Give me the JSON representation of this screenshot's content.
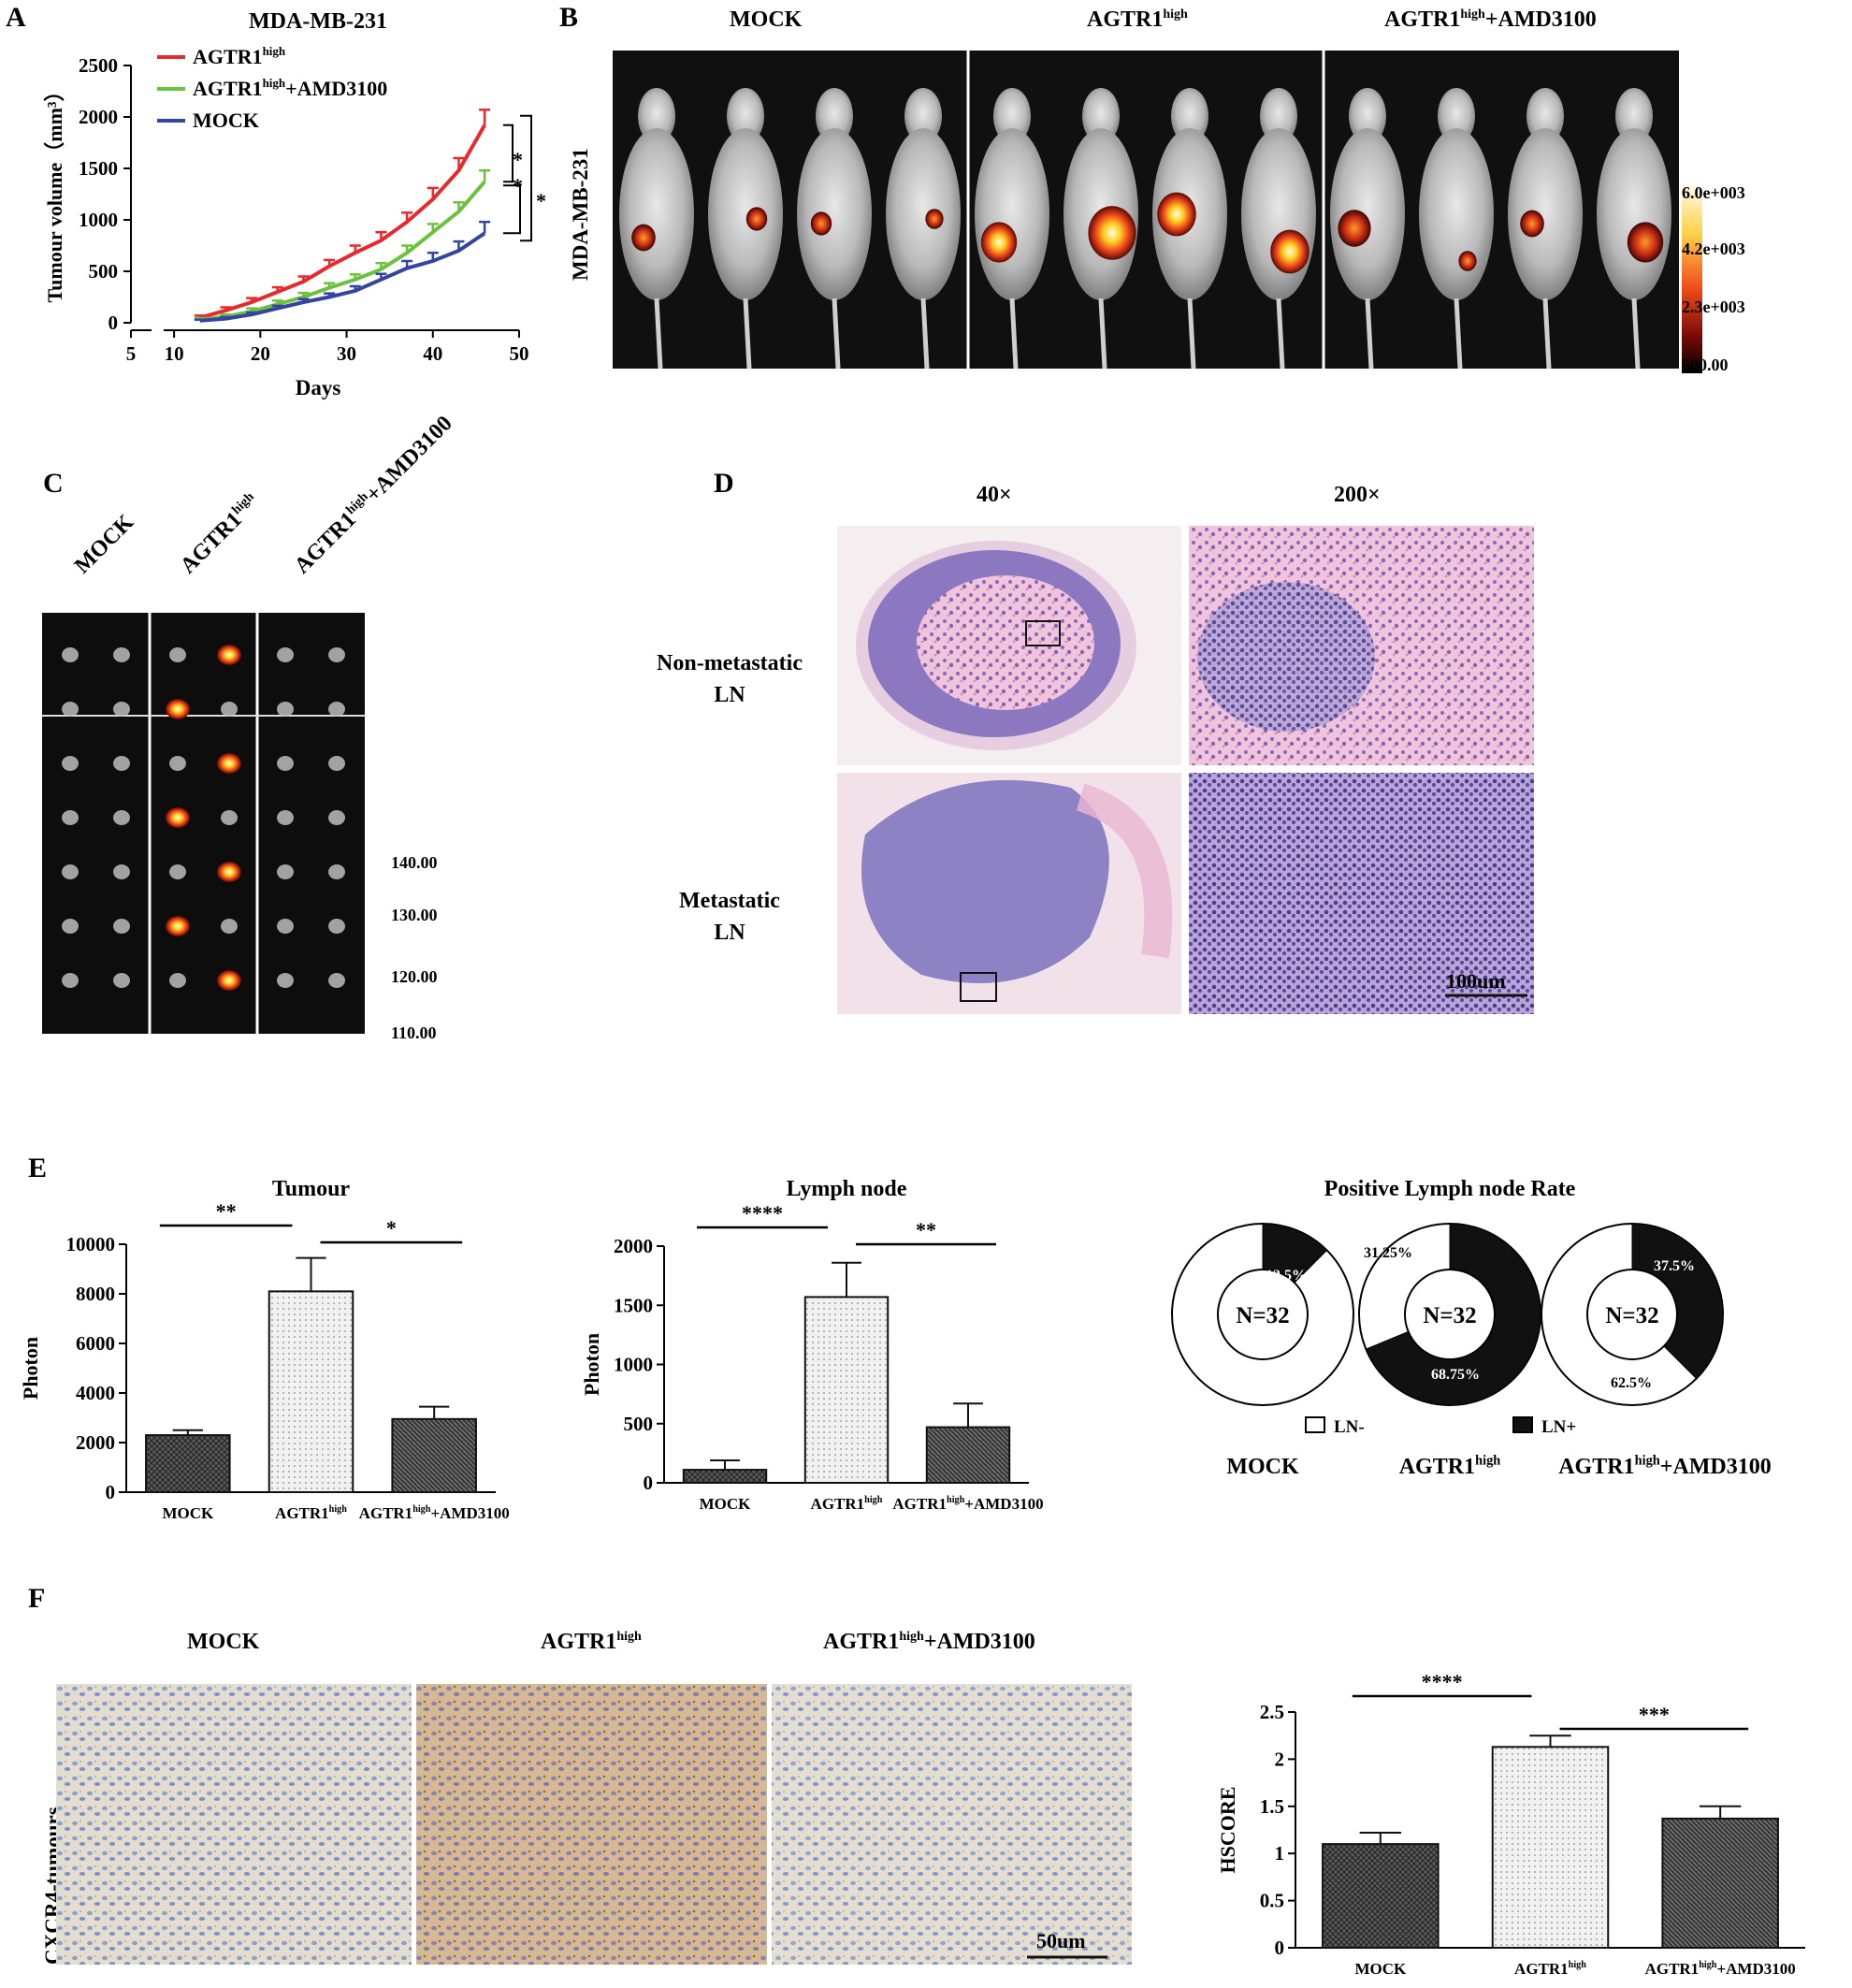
{
  "panels": {
    "A": "A",
    "B": "B",
    "C": "C",
    "D": "D",
    "E": "E",
    "F": "F"
  },
  "groups": {
    "mock": "MOCK",
    "agtr1_base": "AGTR1",
    "high_sup": "high",
    "amd_suffix": "+AMD3100"
  },
  "panelB": {
    "side_label": "MDA-MB-231",
    "scale_ticks": [
      "6.0e+003",
      "4.2e+003",
      "2.3e+003",
      "500.00"
    ]
  },
  "panelC": {
    "scale_ticks": [
      "140.00",
      "130.00",
      "120.00",
      "110.00"
    ]
  },
  "panelD": {
    "col1": "40×",
    "col2": "200×",
    "row1_line1": "Non-metastatic",
    "row1_line2": "LN",
    "row2_line1": "Metastatic",
    "row2_line2": "LN",
    "scale_bar": "100um"
  },
  "panelF": {
    "side_label": "CXCR4-tumours",
    "scale_bar": "50um"
  },
  "colors": {
    "agtr1": "#e8282b",
    "agtr1_amd": "#6ac23c",
    "mock": "#3543a3"
  },
  "chart_data": [
    {
      "id": "A",
      "type": "line",
      "title": "MDA-MB-231",
      "xlabel": "Days",
      "ylabel": "Tumour volume（mm³）",
      "xlim": [
        5,
        50
      ],
      "ylim": [
        0,
        2500
      ],
      "xticks": [
        5,
        10,
        20,
        30,
        40,
        50
      ],
      "yticks": [
        0,
        500,
        1000,
        1500,
        2000,
        2500
      ],
      "x": [
        13,
        16,
        19,
        22,
        25,
        28,
        31,
        34,
        37,
        40,
        43,
        46
      ],
      "series": [
        {
          "name": "AGTR1high",
          "legend_base": "AGTR1",
          "legend_sup": "high",
          "legend_suffix": "",
          "color": "#e8282b",
          "values": [
            50,
            120,
            200,
            300,
            400,
            550,
            680,
            800,
            980,
            1200,
            1480,
            1920
          ],
          "errors": [
            20,
            30,
            40,
            45,
            50,
            60,
            70,
            80,
            90,
            110,
            120,
            150
          ]
        },
        {
          "name": "AGTR1high+AMD3100",
          "legend_base": "AGTR1",
          "legend_sup": "high",
          "legend_suffix": "+AMD3100",
          "color": "#6ac23c",
          "values": [
            30,
            60,
            110,
            180,
            250,
            340,
            420,
            520,
            680,
            880,
            1080,
            1370
          ],
          "errors": [
            15,
            20,
            30,
            35,
            40,
            45,
            50,
            60,
            70,
            80,
            90,
            110
          ]
        },
        {
          "name": "MOCK",
          "legend_base": "MOCK",
          "legend_sup": "",
          "legend_suffix": "",
          "color": "#3543a3",
          "values": [
            20,
            40,
            80,
            140,
            200,
            250,
            310,
            420,
            530,
            600,
            700,
            870
          ],
          "errors": [
            10,
            15,
            20,
            25,
            30,
            35,
            45,
            55,
            70,
            80,
            90,
            110
          ]
        }
      ],
      "significance": [
        "*",
        "*",
        "*"
      ]
    },
    {
      "id": "E-tumour",
      "type": "bar",
      "title": "Tumour",
      "ylabel": "Photon",
      "ylim": [
        0,
        10000
      ],
      "yticks": [
        0,
        2000,
        4000,
        6000,
        8000,
        10000
      ],
      "categories": [
        "MOCK",
        "AGTR1high",
        "AGTR1high+AMD3100"
      ],
      "values": [
        2300,
        8100,
        2950
      ],
      "errors": [
        200,
        1350,
        500
      ],
      "significance": [
        {
          "from": 0,
          "to": 1,
          "label": "**"
        },
        {
          "from": 1,
          "to": 2,
          "label": "*"
        }
      ]
    },
    {
      "id": "E-lymph",
      "type": "bar",
      "title": "Lymph node",
      "ylabel": "Photon",
      "ylim": [
        0,
        2000
      ],
      "yticks": [
        0,
        500,
        1000,
        1500,
        2000
      ],
      "categories": [
        "MOCK",
        "AGTR1high",
        "AGTR1high+AMD3100"
      ],
      "values": [
        110,
        1570,
        470
      ],
      "errors": [
        80,
        290,
        200
      ],
      "significance": [
        {
          "from": 0,
          "to": 1,
          "label": "****"
        },
        {
          "from": 1,
          "to": 2,
          "label": "**"
        }
      ]
    },
    {
      "id": "E-pie",
      "type": "pie",
      "title": "Positive Lymph node Rate",
      "center_label": "N=32",
      "legend": [
        "LN-",
        "LN+"
      ],
      "pies": [
        {
          "group": "MOCK",
          "positive": 12.5,
          "negative": 87.5,
          "labels": [
            "12.5%"
          ]
        },
        {
          "group": "AGTR1high",
          "positive": 68.75,
          "negative": 31.25,
          "labels": [
            "31.25%",
            "68.75%"
          ]
        },
        {
          "group": "AGTR1high+AMD3100",
          "positive": 37.5,
          "negative": 62.5,
          "labels": [
            "37.5%",
            "62.5%"
          ]
        }
      ]
    },
    {
      "id": "F-hscore",
      "type": "bar",
      "ylabel": "HSCORE",
      "ylim": [
        0,
        2.5
      ],
      "yticks": [
        "0",
        "0.5",
        "1",
        "1.5",
        "2",
        "2.5"
      ],
      "categories": [
        "MOCK",
        "AGTR1high",
        "AGTR1high+AMD3100"
      ],
      "values": [
        1.1,
        2.13,
        1.37
      ],
      "errors": [
        0.12,
        0.12,
        0.13
      ],
      "significance": [
        {
          "from": 0,
          "to": 1,
          "label": "****"
        },
        {
          "from": 1,
          "to": 2,
          "label": "***"
        }
      ]
    }
  ]
}
